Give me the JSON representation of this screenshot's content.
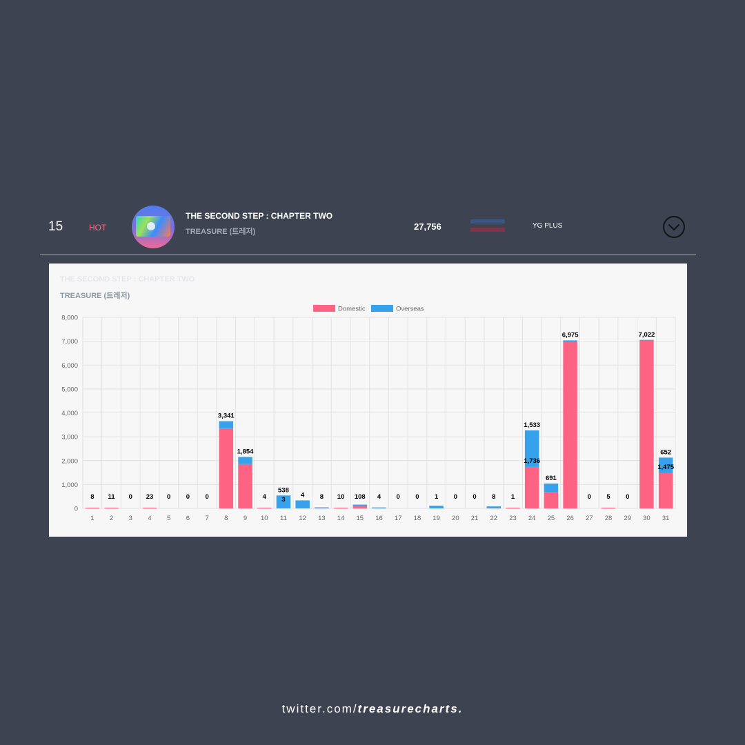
{
  "row": {
    "rank": "15",
    "badge": "HOT",
    "album_title": "THE SECOND STEP : CHAPTER TWO",
    "artist": "TREASURE (트레저)",
    "total": "27,756",
    "agency": "YG PLUS",
    "icons": {
      "cover": "album-cover-icon",
      "toggle": "chevron-down-circle-icon"
    }
  },
  "panel": {
    "title": "THE SECOND STEP : CHAPTER TWO",
    "artist": "TREASURE (트레저)"
  },
  "chart_data": {
    "type": "bar",
    "stacked": true,
    "categories": [
      "1",
      "2",
      "3",
      "4",
      "5",
      "6",
      "7",
      "8",
      "9",
      "10",
      "11",
      "12",
      "13",
      "14",
      "15",
      "16",
      "17",
      "18",
      "19",
      "20",
      "21",
      "22",
      "23",
      "24",
      "25",
      "26",
      "27",
      "28",
      "29",
      "30",
      "31"
    ],
    "series": [
      {
        "name": "Domestic",
        "color": "#ff6384",
        "values": [
          8,
          11,
          0,
          23,
          0,
          0,
          0,
          3341,
          1854,
          4,
          3,
          4,
          8,
          10,
          108,
          4,
          0,
          0,
          1,
          0,
          0,
          8,
          1,
          1736,
          691,
          6975,
          0,
          5,
          0,
          7022,
          1475
        ]
      },
      {
        "name": "Overseas",
        "color": "#36a2eb",
        "values": [
          0,
          0,
          0,
          0,
          0,
          0,
          0,
          310,
          300,
          0,
          538,
          330,
          20,
          0,
          50,
          25,
          0,
          0,
          110,
          0,
          0,
          75,
          0,
          1533,
          350,
          60,
          0,
          0,
          0,
          20,
          652
        ]
      }
    ],
    "labels": [
      {
        "index": 0,
        "text": "8"
      },
      {
        "index": 1,
        "text": "11"
      },
      {
        "index": 2,
        "text": "0"
      },
      {
        "index": 3,
        "text": "23"
      },
      {
        "index": 4,
        "text": "0"
      },
      {
        "index": 5,
        "text": "0"
      },
      {
        "index": 6,
        "text": "0"
      },
      {
        "index": 7,
        "text": "3,341"
      },
      {
        "index": 8,
        "text": "1,854"
      },
      {
        "index": 9,
        "text": "4"
      },
      {
        "index": 10,
        "text": "538",
        "text2": "3"
      },
      {
        "index": 11,
        "text": "4"
      },
      {
        "index": 12,
        "text": "8"
      },
      {
        "index": 13,
        "text": "10"
      },
      {
        "index": 14,
        "text": "108"
      },
      {
        "index": 15,
        "text": "4"
      },
      {
        "index": 16,
        "text": "0"
      },
      {
        "index": 17,
        "text": "0"
      },
      {
        "index": 18,
        "text": "1"
      },
      {
        "index": 19,
        "text": "0"
      },
      {
        "index": 20,
        "text": "0"
      },
      {
        "index": 21,
        "text": "8"
      },
      {
        "index": 22,
        "text": "1"
      },
      {
        "index": 23,
        "text": "1,533",
        "text2": "1,736"
      },
      {
        "index": 24,
        "text": "691"
      },
      {
        "index": 25,
        "text": "6,975"
      },
      {
        "index": 26,
        "text": "0"
      },
      {
        "index": 27,
        "text": "5"
      },
      {
        "index": 28,
        "text": "0"
      },
      {
        "index": 29,
        "text": "7,022"
      },
      {
        "index": 30,
        "text": "652",
        "text2": "1,475"
      }
    ],
    "yticks": [
      "0",
      "1,000",
      "2,000",
      "3,000",
      "4,000",
      "5,000",
      "6,000",
      "7,000",
      "8,000"
    ],
    "ylim": [
      0,
      8000
    ],
    "grid": true,
    "legend": "top-center"
  },
  "footer": {
    "prefix": "twitter.com/",
    "handle": "treasurecharts",
    "suffix": "."
  }
}
